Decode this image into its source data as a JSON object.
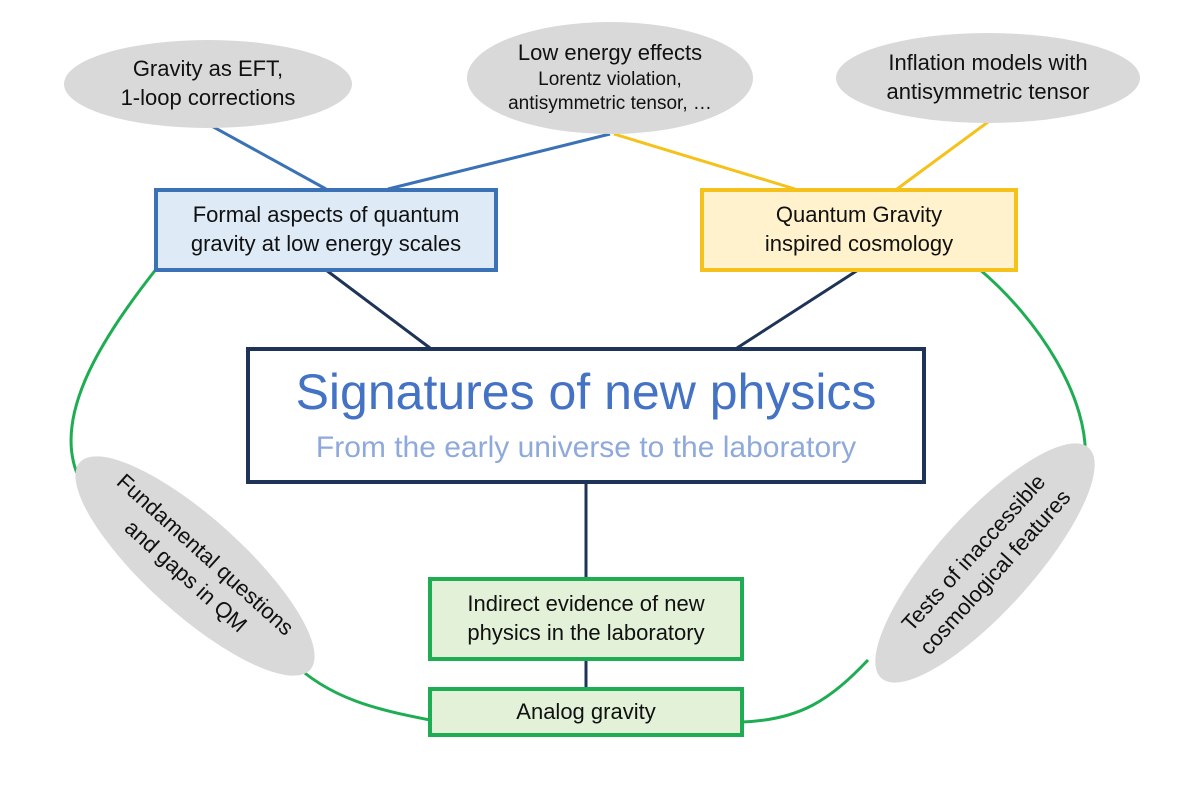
{
  "colors": {
    "blue": "#3a72b5",
    "yellow": "#f4c21a",
    "green": "#1ead52",
    "navy": "#1e3358",
    "ellipse_fill": "#d9d9d9"
  },
  "top_ellipses": {
    "gravity_eft": {
      "line1": "Gravity as EFT,",
      "line2": "1-loop corrections"
    },
    "low_energy": {
      "line1": "Low energy effects",
      "line2": "Lorentz violation,",
      "line3": "antisymmetric tensor, …"
    },
    "inflation": {
      "line1": "Inflation models with",
      "line2": "antisymmetric tensor"
    }
  },
  "boxes": {
    "formal": {
      "line1": "Formal aspects of quantum",
      "line2": "gravity at low energy scales"
    },
    "qg_cosmology": {
      "line1": "Quantum Gravity",
      "line2": "inspired cosmology"
    },
    "main": {
      "title": "Signatures of new physics",
      "subtitle": "From the early universe to the laboratory"
    },
    "indirect": {
      "line1": "Indirect evidence of new",
      "line2": "physics in the laboratory"
    },
    "analog": {
      "label": "Analog gravity"
    }
  },
  "side_ellipses": {
    "fundamental": {
      "line1": "Fundamental questions",
      "line2": "and gaps in QM"
    },
    "tests": {
      "line1": "Tests of inaccessible",
      "line2": "cosmological features"
    }
  }
}
